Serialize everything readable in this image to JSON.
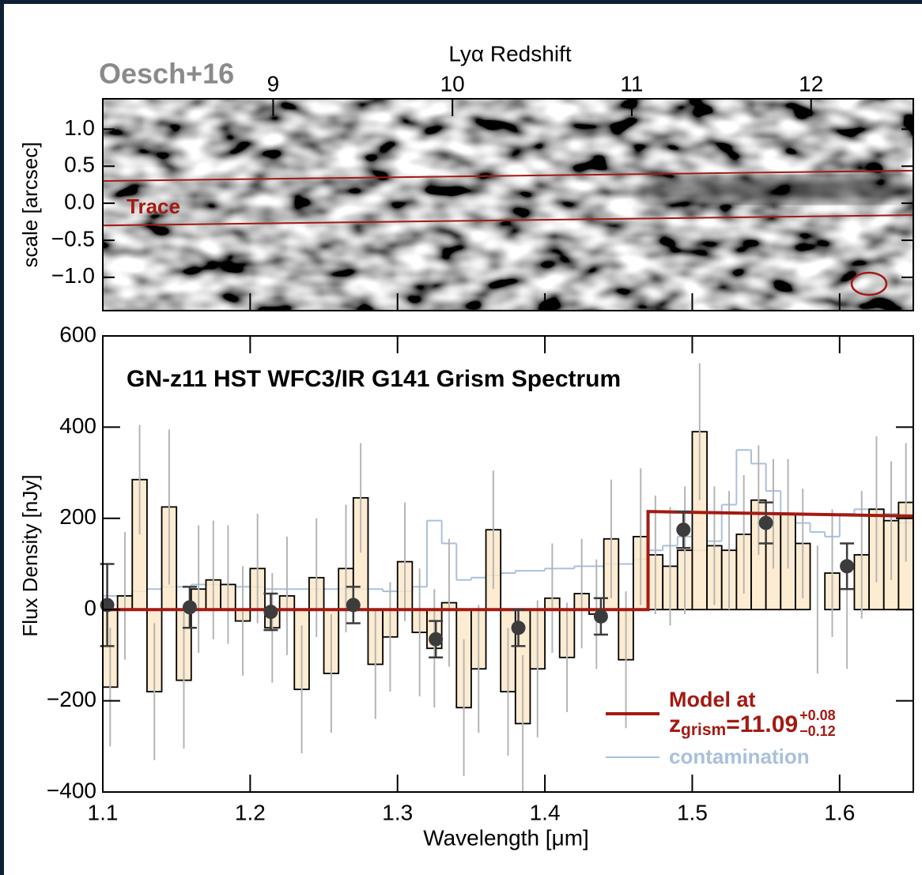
{
  "oesch_label": "Oesch+16",
  "chart_data": [
    {
      "type": "image2d",
      "ylabel": "scale [arcsec]",
      "x2label": "Lyα Redshift",
      "xlim": [
        1.1,
        1.65
      ],
      "xticks": [
        1.2,
        1.3,
        1.4,
        1.5,
        1.6
      ],
      "x2lim": [
        8.05,
        12.57
      ],
      "x2ticks": [
        9,
        10,
        11,
        12
      ],
      "ylim": [
        -1.45,
        1.41
      ],
      "yticks": [
        {
          "value": 1,
          "label": "1.0"
        },
        {
          "value": 0.5,
          "label": "0.5"
        },
        {
          "value": 0,
          "label": "0.0"
        },
        {
          "value": -0.5,
          "label": "−0.5"
        },
        {
          "value": -1,
          "label": "−1.0"
        }
      ],
      "trace": {
        "label": "Trace",
        "color": "#a31a12",
        "x": [
          1.1,
          1.65
        ],
        "upper": [
          0.3,
          0.44
        ],
        "lower": [
          -0.3,
          -0.16
        ]
      }
    },
    {
      "type": "step",
      "title": "GN-z11 HST WFC3/IR G141 Grism Spectrum",
      "xlabel": "Wavelength [μm]",
      "ylabel": "Flux Density [nJy]",
      "xlim": [
        1.1,
        1.65
      ],
      "xticks": [
        1.1,
        1.2,
        1.3,
        1.4,
        1.5,
        1.6
      ],
      "ylim": [
        -400,
        600
      ],
      "yticks": [
        {
          "value": -400,
          "label": "−400"
        },
        {
          "value": -200,
          "label": "−200"
        },
        0,
        200,
        400,
        600
      ],
      "bins": [
        1.1,
        1.11,
        1.12,
        1.13,
        1.14,
        1.15,
        1.16,
        1.17,
        1.18,
        1.19,
        1.2,
        1.21,
        1.22,
        1.23,
        1.24,
        1.25,
        1.26,
        1.27,
        1.28,
        1.29,
        1.3,
        1.31,
        1.32,
        1.33,
        1.34,
        1.35,
        1.36,
        1.37,
        1.38,
        1.39,
        1.4,
        1.41,
        1.42,
        1.43,
        1.44,
        1.45,
        1.46,
        1.47,
        1.48,
        1.49,
        1.5,
        1.51,
        1.52,
        1.53,
        1.54,
        1.55,
        1.56,
        1.57,
        1.58,
        1.59,
        1.6,
        1.61,
        1.62,
        1.63,
        1.64,
        1.65
      ],
      "flux": {
        "color": "#fde9c9",
        "error_color": "#b5b5b5",
        "values": [
          -170,
          30,
          285,
          -180,
          225,
          -155,
          45,
          65,
          55,
          -25,
          90,
          -40,
          30,
          -175,
          70,
          -140,
          90,
          245,
          -120,
          -60,
          105,
          -50,
          -85,
          15,
          -215,
          -130,
          175,
          -180,
          -250,
          -130,
          25,
          -105,
          35,
          -10,
          155,
          -110,
          160,
          120,
          95,
          130,
          390,
          140,
          130,
          165,
          240,
          210,
          210,
          145,
          0,
          80,
          0,
          120,
          220,
          195,
          235
        ],
        "errors": [
          130,
          140,
          120,
          150,
          170,
          150,
          140,
          130,
          130,
          120,
          120,
          120,
          130,
          140,
          130,
          130,
          140,
          120,
          120,
          120,
          130,
          140,
          130,
          140,
          150,
          140,
          130,
          140,
          150,
          150,
          120,
          120,
          120,
          120,
          130,
          150,
          150,
          130,
          130,
          140,
          150,
          130,
          130,
          130,
          120,
          120,
          120,
          120,
          140,
          140,
          130,
          140,
          160,
          130,
          130
        ]
      },
      "contamination": {
        "name": "contamination",
        "color": "#a9c0dc",
        "values": [
          30,
          30,
          40,
          45,
          50,
          50,
          55,
          55,
          55,
          50,
          50,
          45,
          45,
          45,
          45,
          45,
          45,
          45,
          45,
          40,
          40,
          50,
          195,
          145,
          65,
          70,
          75,
          80,
          85,
          85,
          90,
          90,
          95,
          95,
          100,
          100,
          110,
          130,
          140,
          160,
          130,
          150,
          230,
          350,
          320,
          260,
          210,
          190,
          170,
          160,
          210,
          220,
          220,
          210,
          190
        ]
      },
      "binned": {
        "color": "#3c3c3c",
        "x": [
          1.103,
          1.159,
          1.214,
          1.27,
          1.326,
          1.382,
          1.438,
          1.494,
          1.55,
          1.605
        ],
        "values": [
          10,
          5,
          -5,
          10,
          -65,
          -40,
          -15,
          175,
          190,
          95
        ],
        "errors": [
          90,
          45,
          40,
          40,
          40,
          40,
          40,
          40,
          45,
          50
        ]
      },
      "model": {
        "name": "Model at",
        "color": "#a31a12",
        "x": [
          1.1,
          1.47,
          1.47,
          1.65
        ],
        "values": [
          0,
          0,
          215,
          205
        ],
        "redshift": {
          "symbol": "z",
          "sub": "grism",
          "text": "=11.09",
          "plus": "+0.08",
          "minus": "−0.12"
        }
      }
    }
  ]
}
